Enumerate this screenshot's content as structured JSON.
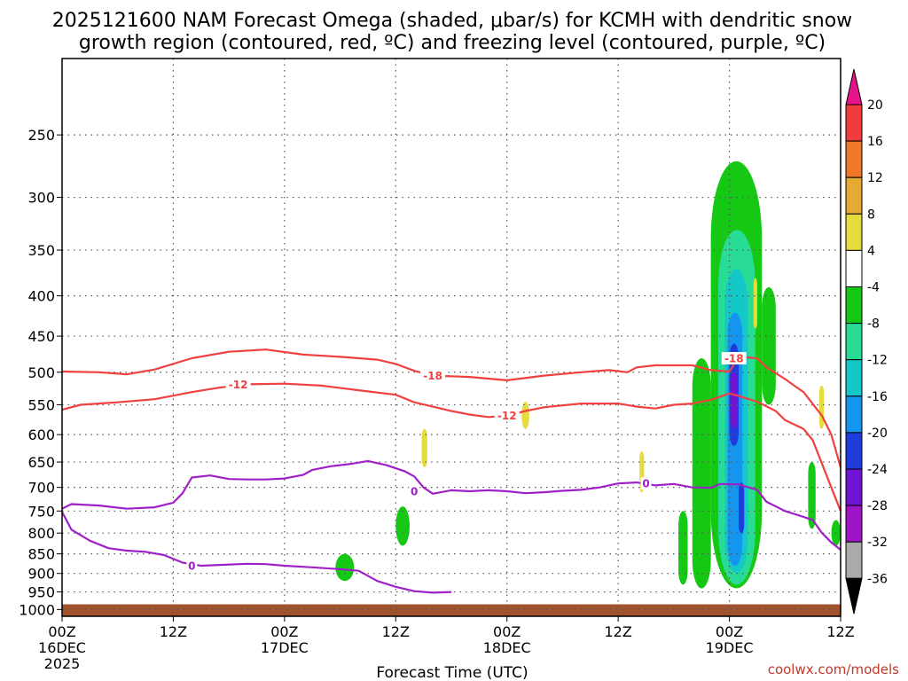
{
  "chart_data": {
    "type": "heatmap",
    "title_line1": "2025121600 NAM Forecast Omega (shaded, μbar/s) for KCMH with dendritic snow",
    "title_line2": "growth region (contoured, red, ºC) and freezing level (contoured, purple, ºC)",
    "xlabel": "Forecast Time (UTC)",
    "x_ticks": [
      {
        "h": 0,
        "top": "00Z",
        "bottom": "16DEC",
        "third": "2025"
      },
      {
        "h": 12,
        "top": "12Z",
        "bottom": "",
        "third": ""
      },
      {
        "h": 24,
        "top": "00Z",
        "bottom": "17DEC",
        "third": ""
      },
      {
        "h": 36,
        "top": "12Z",
        "bottom": "",
        "third": ""
      },
      {
        "h": 48,
        "top": "00Z",
        "bottom": "18DEC",
        "third": ""
      },
      {
        "h": 60,
        "top": "12Z",
        "bottom": "",
        "third": ""
      },
      {
        "h": 72,
        "top": "00Z",
        "bottom": "19DEC",
        "third": ""
      },
      {
        "h": 84,
        "top": "12Z",
        "bottom": "",
        "third": ""
      }
    ],
    "xlim_hours": [
      0,
      84
    ],
    "ylim_hpa": [
      1020,
      200
    ],
    "y_ticks": [
      250,
      300,
      350,
      400,
      450,
      500,
      550,
      600,
      650,
      700,
      750,
      800,
      850,
      900,
      950,
      1000
    ],
    "colorbar": {
      "labels": [
        "20",
        "16",
        "12",
        "8",
        "4",
        "-4",
        "-8",
        "-12",
        "-16",
        "-20",
        "-24",
        "-28",
        "-32",
        "-36"
      ],
      "colors": [
        "#e8128a",
        "#f03c3c",
        "#f07828",
        "#e6aa32",
        "#e6dc3c",
        "#ffffff",
        "#14c814",
        "#28dc96",
        "#14c8c8",
        "#1496f0",
        "#1e3cdc",
        "#6e14d2",
        "#a014c8",
        "#aaaaaa",
        "#000000"
      ]
    },
    "series": [
      {
        "name": "-12",
        "color": "#f04040",
        "points": [
          [
            0,
            558
          ],
          [
            2,
            550
          ],
          [
            6,
            546
          ],
          [
            10,
            541
          ],
          [
            14,
            530
          ],
          [
            17,
            523
          ],
          [
            20,
            518
          ],
          [
            24,
            517
          ],
          [
            28,
            520
          ],
          [
            32,
            527
          ],
          [
            36,
            534
          ],
          [
            38,
            546
          ],
          [
            40,
            553
          ],
          [
            42,
            560
          ],
          [
            44,
            566
          ],
          [
            46,
            570
          ],
          [
            48,
            568
          ],
          [
            50,
            560
          ],
          [
            52,
            554
          ],
          [
            56,
            548
          ],
          [
            60,
            548
          ],
          [
            62,
            553
          ],
          [
            64,
            556
          ],
          [
            66,
            550
          ],
          [
            68,
            548
          ],
          [
            70,
            542
          ],
          [
            72,
            532
          ],
          [
            73,
            536
          ],
          [
            75,
            545
          ],
          [
            77,
            560
          ],
          [
            78,
            575
          ],
          [
            80,
            590
          ],
          [
            81,
            610
          ],
          [
            83,
            700
          ],
          [
            84,
            750
          ]
        ]
      },
      {
        "name": "-18",
        "color": "#f04040",
        "points": [
          [
            0,
            499
          ],
          [
            4,
            500
          ],
          [
            7,
            503
          ],
          [
            10,
            496
          ],
          [
            14,
            480
          ],
          [
            18,
            471
          ],
          [
            22,
            468
          ],
          [
            26,
            475
          ],
          [
            30,
            478
          ],
          [
            34,
            482
          ],
          [
            36,
            488
          ],
          [
            38,
            498
          ],
          [
            40,
            505
          ],
          [
            44,
            507
          ],
          [
            48,
            512
          ],
          [
            52,
            505
          ],
          [
            56,
            500
          ],
          [
            59,
            497
          ],
          [
            61,
            500
          ],
          [
            62,
            493
          ],
          [
            64,
            490
          ],
          [
            68,
            490
          ],
          [
            70,
            497
          ],
          [
            72,
            499
          ],
          [
            73,
            478
          ],
          [
            75,
            480
          ],
          [
            76,
            493
          ],
          [
            78,
            510
          ],
          [
            79,
            520
          ],
          [
            80,
            530
          ],
          [
            82,
            568
          ],
          [
            83,
            600
          ],
          [
            84,
            660
          ]
        ]
      },
      {
        "name": "0",
        "color": "#a020c8",
        "points": [
          [
            0,
            745
          ],
          [
            1,
            735
          ],
          [
            4,
            738
          ],
          [
            7,
            745
          ],
          [
            10,
            742
          ],
          [
            12,
            732
          ],
          [
            13,
            712
          ],
          [
            14,
            680
          ],
          [
            16,
            676
          ],
          [
            18,
            683
          ],
          [
            20,
            684
          ],
          [
            22,
            684
          ],
          [
            24,
            682
          ],
          [
            26,
            675
          ],
          [
            27,
            665
          ],
          [
            29,
            658
          ],
          [
            31,
            654
          ],
          [
            33,
            648
          ],
          [
            35,
            656
          ],
          [
            37,
            668
          ],
          [
            38,
            678
          ],
          [
            39,
            700
          ],
          [
            40,
            713
          ],
          [
            42,
            706
          ],
          [
            44,
            708
          ],
          [
            46,
            706
          ],
          [
            48,
            708
          ],
          [
            50,
            712
          ],
          [
            52,
            710
          ],
          [
            54,
            707
          ],
          [
            56,
            705
          ],
          [
            58,
            700
          ],
          [
            60,
            692
          ],
          [
            62,
            690
          ],
          [
            64,
            696
          ],
          [
            66,
            693
          ],
          [
            68,
            700
          ],
          [
            70,
            701
          ],
          [
            71,
            693
          ],
          [
            73,
            694
          ],
          [
            75,
            705
          ],
          [
            76,
            730
          ],
          [
            78,
            750
          ],
          [
            80,
            763
          ],
          [
            81,
            770
          ],
          [
            82,
            800
          ],
          [
            83,
            822
          ],
          [
            84,
            840
          ]
        ]
      },
      {
        "name": "0",
        "color": "#a020c8",
        "points": [
          [
            0,
            752
          ],
          [
            1,
            792
          ],
          [
            3,
            818
          ],
          [
            5,
            836
          ],
          [
            7,
            842
          ],
          [
            9,
            845
          ],
          [
            11,
            853
          ],
          [
            13,
            872
          ],
          [
            15,
            880
          ],
          [
            17,
            878
          ],
          [
            20,
            875
          ],
          [
            22,
            876
          ],
          [
            24,
            880
          ],
          [
            27,
            884
          ],
          [
            30,
            889
          ],
          [
            32,
            893
          ],
          [
            34,
            920
          ],
          [
            36,
            936
          ],
          [
            38,
            948
          ],
          [
            40,
            952
          ],
          [
            42,
            950
          ]
        ]
      }
    ],
    "series_labels": [
      {
        "text": "-12",
        "color": "#f04040",
        "h": 19,
        "p": 518
      },
      {
        "text": "-12",
        "color": "#f04040",
        "h": 48,
        "p": 567
      },
      {
        "text": "-18",
        "color": "#f04040",
        "h": 40,
        "p": 505
      },
      {
        "text": "-18",
        "color": "#f04040",
        "h": 72.5,
        "p": 480
      },
      {
        "text": "0",
        "color": "#a020c8",
        "h": 14,
        "p": 880
      },
      {
        "text": "0",
        "color": "#a020c8",
        "h": 38,
        "p": 708
      },
      {
        "text": "0",
        "color": "#a020c8",
        "h": 63,
        "p": 692
      }
    ],
    "omega_patches": [
      {
        "level": "-4",
        "color": "#14c814",
        "h0": 70,
        "h1": 75.5,
        "p0": 270,
        "p1": 940
      },
      {
        "level": "-4",
        "color": "#14c814",
        "h0": 68,
        "h1": 70,
        "p0": 480,
        "p1": 940
      },
      {
        "level": "-4",
        "color": "#14c814",
        "h0": 66.5,
        "h1": 67.5,
        "p0": 750,
        "p1": 930
      },
      {
        "level": "-4",
        "color": "#14c814",
        "h0": 75.5,
        "h1": 77,
        "p0": 390,
        "p1": 550
      },
      {
        "level": "-4",
        "color": "#14c814",
        "h0": 83,
        "h1": 84,
        "p0": 770,
        "p1": 830
      },
      {
        "level": "-4",
        "color": "#14c814",
        "h0": 80.5,
        "h1": 81.3,
        "p0": 650,
        "p1": 790
      },
      {
        "level": "-4",
        "color": "#14c814",
        "h0": 36,
        "h1": 37.5,
        "p0": 740,
        "p1": 830
      },
      {
        "level": "-4",
        "color": "#14c814",
        "h0": 29.5,
        "h1": 31.5,
        "p0": 850,
        "p1": 920
      },
      {
        "level": "-8",
        "color": "#28dc96",
        "h0": 70.8,
        "h1": 74.8,
        "p0": 330,
        "p1": 930
      },
      {
        "level": "-12",
        "color": "#14c8c8",
        "h0": 71.5,
        "h1": 74,
        "p0": 370,
        "p1": 900
      },
      {
        "level": "-16",
        "color": "#1496f0",
        "h0": 71.8,
        "h1": 73.4,
        "p0": 420,
        "p1": 880
      },
      {
        "level": "-20",
        "color": "#1e3cdc",
        "h0": 72,
        "h1": 73,
        "p0": 460,
        "p1": 620
      },
      {
        "level": "-24",
        "color": "#6e14d2",
        "h0": 72.1,
        "h1": 72.9,
        "p0": 500,
        "p1": 590
      },
      {
        "level": "-20",
        "color": "#1e3cdc",
        "h0": 73,
        "h1": 73.6,
        "p0": 690,
        "p1": 800
      },
      {
        "level": "4",
        "color": "#e6dc3c",
        "h0": 38.8,
        "h1": 39.4,
        "p0": 590,
        "p1": 660
      },
      {
        "level": "4",
        "color": "#e6dc3c",
        "h0": 49.6,
        "h1": 50.4,
        "p0": 545,
        "p1": 590
      },
      {
        "level": "4",
        "color": "#e6dc3c",
        "h0": 62.3,
        "h1": 62.8,
        "p0": 630,
        "p1": 710
      },
      {
        "level": "4",
        "color": "#e6dc3c",
        "h0": 74.6,
        "h1": 75,
        "p0": 380,
        "p1": 440
      },
      {
        "level": "4",
        "color": "#e6dc3c",
        "h0": 81.7,
        "h1": 82.2,
        "p0": 520,
        "p1": 590
      }
    ],
    "ground_top_hpa": 985
  },
  "credit": "coolwx.com/models"
}
